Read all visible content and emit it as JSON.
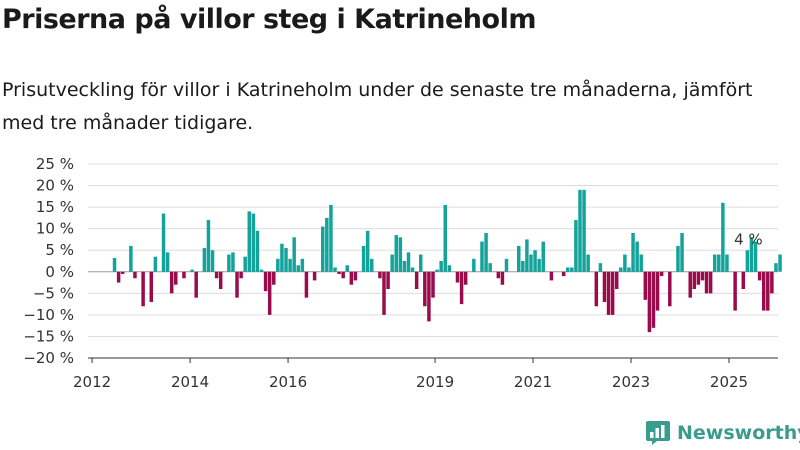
{
  "header": {
    "title": "Priserna på villor steg i Katrineholm",
    "subtitle": "Prisutveckling för villor i Katrineholm under de senaste tre månaderna, jämfört med tre månader tidigare."
  },
  "brand": {
    "name": "Newsworthy",
    "icon": "bar-chart-logo-icon",
    "color": "#3a9c8c"
  },
  "colors": {
    "positive": "#14a39a",
    "negative": "#990b4a",
    "grid": "#dddddd"
  },
  "chart_data": {
    "type": "bar",
    "title": "",
    "xlabel": "",
    "ylabel": "",
    "ylim": [
      -20,
      25
    ],
    "yticks": [
      -20,
      -15,
      -10,
      -5,
      0,
      5,
      10,
      15,
      20,
      25
    ],
    "ytick_labels": [
      "−20 %",
      "−15 %",
      "−10 %",
      "−5 %",
      "0 %",
      "5 %",
      "10 %",
      "15 %",
      "20 %",
      "25 %"
    ],
    "xlim": [
      "2011-12",
      "2026-01"
    ],
    "x_ticks": [
      {
        "date": "2012-01",
        "label": "2012"
      },
      {
        "date": "2014-01",
        "label": "2014"
      },
      {
        "date": "2016-01",
        "label": "2016"
      },
      {
        "date": "2019-01",
        "label": "2019"
      },
      {
        "date": "2021-01",
        "label": "2021"
      },
      {
        "date": "2023-01",
        "label": "2023"
      },
      {
        "date": "2025-01",
        "label": "2025"
      }
    ],
    "start": "2012-06",
    "frequency": "monthly",
    "values": [
      3.2,
      -2.5,
      -0.5,
      0,
      6,
      -1.5,
      0,
      -8,
      0,
      -7,
      3.5,
      0,
      13.5,
      4.5,
      -5,
      -3,
      0,
      -1.5,
      0,
      0.5,
      -6,
      0,
      5.5,
      12,
      5,
      -1.5,
      -4,
      0,
      4,
      4.5,
      -6,
      -1.5,
      3.5,
      14,
      13.5,
      9.5,
      0.5,
      -4.5,
      -10,
      -3,
      3,
      6.5,
      5.5,
      3,
      8,
      1.5,
      3,
      -6,
      0,
      -2,
      0,
      10.5,
      12.5,
      15.5,
      1,
      -0.5,
      -1.5,
      1.5,
      -3,
      -2,
      0,
      6,
      9.5,
      3,
      0,
      -1.5,
      -10,
      -4,
      4,
      8.5,
      8,
      2.5,
      4.5,
      1,
      -4,
      4,
      -8,
      -11.5,
      -6,
      0.5,
      2.5,
      15.5,
      1.5,
      0,
      -2.5,
      -7.5,
      -3,
      0,
      3,
      0,
      7,
      9,
      2,
      0,
      -1.5,
      -3,
      3,
      0,
      0,
      6,
      2.5,
      7.5,
      4,
      5,
      3,
      7,
      0,
      -2,
      0,
      0,
      -1,
      1,
      1,
      12,
      19,
      19,
      4,
      0,
      -8,
      2,
      -7,
      -10,
      -10,
      -4,
      1,
      4,
      1,
      9,
      7,
      4,
      -6.5,
      -14,
      -13,
      -9,
      -1,
      0,
      -8,
      0,
      6,
      9,
      0,
      -6,
      -4,
      -3,
      -2,
      -5,
      -5,
      4,
      4,
      16,
      4,
      0,
      -9,
      0,
      -4,
      5,
      8,
      7,
      -2,
      -9,
      -9,
      -5,
      2,
      4
    ],
    "annotation": {
      "text": "4 %",
      "date": "2025-05",
      "value": 4
    }
  }
}
